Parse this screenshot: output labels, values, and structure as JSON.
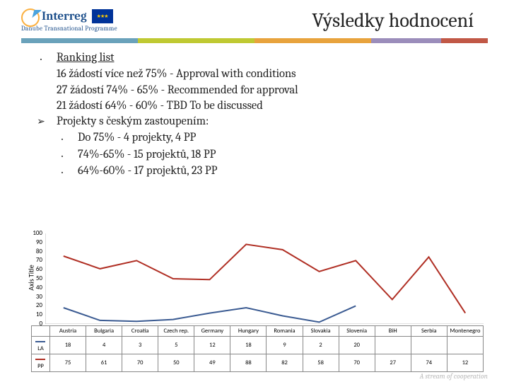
{
  "header": {
    "logo_brand": "Interreg",
    "programme": "Danube Transnational Programme",
    "title": "Výsledky hodnocení"
  },
  "content": {
    "ranking_title": "Ranking list",
    "line1": "16 žádostí více než 75% - Approval with conditions",
    "line2": "27 žádostí 74% - 65% - Recommended for approval",
    "line3": "21 žádostí 64% - 60% - TBD To be discussed",
    "projects_title": "Projekty s českým zastoupením:",
    "sub1": "Do 75%  - 4 projekty, 4 PP",
    "sub2": "74%-65% - 15 projektů,  18 PP",
    "sub3": "64%-60% - 17 projektů, 23 PP"
  },
  "chart": {
    "type": "line",
    "axis_title": "Axis Title",
    "ylim": [
      0,
      100
    ],
    "ytick_step": 10,
    "yticks": [
      0,
      10,
      20,
      30,
      40,
      50,
      60,
      70,
      80,
      90,
      100
    ],
    "categories": [
      "Austria",
      "Bulgaria",
      "Croatia",
      "Czech rep.",
      "Germany",
      "Hungary",
      "Romania",
      "Slovakia",
      "Slovenia",
      "BiH",
      "Serbia",
      "Montenegro"
    ],
    "series": [
      {
        "name": "LA",
        "color": "#3b5b92",
        "values": [
          18,
          4,
          3,
          5,
          12,
          18,
          9,
          2,
          20,
          null,
          null,
          null
        ]
      },
      {
        "name": "PP",
        "color": "#b02f24",
        "values": [
          75,
          61,
          70,
          50,
          49,
          88,
          82,
          58,
          70,
          27,
          74,
          12
        ]
      }
    ],
    "background_color": "#ffffff",
    "grid_color": "#cccccc",
    "label_fontsize": 9
  },
  "footer": "A stream of cooperation"
}
